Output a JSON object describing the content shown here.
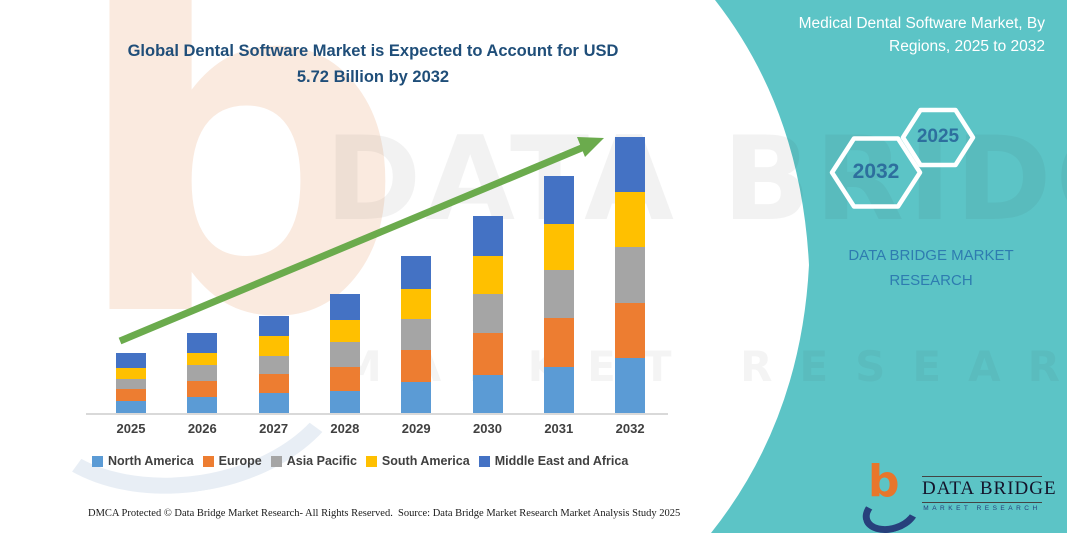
{
  "title": {
    "full": "Global Dental Software Market is Expected to Account for USD 5.72 Billion by 2032",
    "line1": "Global Dental Software Market is Expected to Account for USD",
    "line2": "5.72 Billion by 2032"
  },
  "panel": {
    "heading_line1": "Medical Dental Software Market, By",
    "heading_line2": "Regions, 2025 to 2032",
    "hexagons": [
      {
        "label": "2032"
      },
      {
        "label": "2025"
      }
    ],
    "brand_line1": "DATA BRIDGE MARKET",
    "brand_line2": "RESEARCH",
    "colors": {
      "panel_teal": "#5CC4C6",
      "hex_label_blue": "#2D6F9E",
      "brand_blue": "#2E7CB0"
    }
  },
  "chart_data": {
    "type": "bar",
    "stacked": true,
    "title": "Global Dental Software Market is Expected to Account for USD 5.72 Billion by 2032",
    "unit": "USD Billion (estimated; only the 2032 total of 5.72 is stated on the image)",
    "categories": [
      "2025",
      "2026",
      "2027",
      "2028",
      "2029",
      "2030",
      "2031",
      "2032"
    ],
    "series": [
      {
        "name": "North America",
        "color": "#5B9BD5",
        "values": [
          0.25,
          0.34,
          0.41,
          0.46,
          0.65,
          0.79,
          0.96,
          1.13
        ]
      },
      {
        "name": "Europe",
        "color": "#ED7D31",
        "values": [
          0.24,
          0.33,
          0.39,
          0.49,
          0.66,
          0.86,
          1.01,
          1.14
        ]
      },
      {
        "name": "Asia Pacific",
        "color": "#A5A5A5",
        "values": [
          0.21,
          0.33,
          0.39,
          0.52,
          0.64,
          0.81,
          0.99,
          1.17
        ]
      },
      {
        "name": "South America",
        "color": "#FFC000",
        "values": [
          0.24,
          0.25,
          0.4,
          0.45,
          0.61,
          0.79,
          0.95,
          1.14
        ]
      },
      {
        "name": "Middle East and Africa",
        "color": "#4472C4",
        "values": [
          0.3,
          0.4,
          0.43,
          0.55,
          0.7,
          0.83,
          1.0,
          1.14
        ]
      }
    ],
    "totals_estimated": [
      1.24,
      1.65,
      2.02,
      2.47,
      3.26,
      4.08,
      4.91,
      5.72
    ],
    "y_axis_visible": false,
    "grid": false,
    "legend_position": "bottom",
    "axis_line_color": "#D9D9D9",
    "trend_arrow": {
      "present": true,
      "color": "#6BAB4D"
    }
  },
  "watermark": {
    "line1": "DATA BRIDGE",
    "line2": "MARKET RESEARCH",
    "letter_b": "b"
  },
  "footer": {
    "dmca": "DMCA Protected © Data Bridge Market Research-  All Rights Reserved.",
    "source": "Source: Data Bridge Market Research  Market Analysis Study 2025"
  },
  "logo": {
    "name": "DATA BRIDGE",
    "subtitle": "MARKET RESEARCH"
  }
}
